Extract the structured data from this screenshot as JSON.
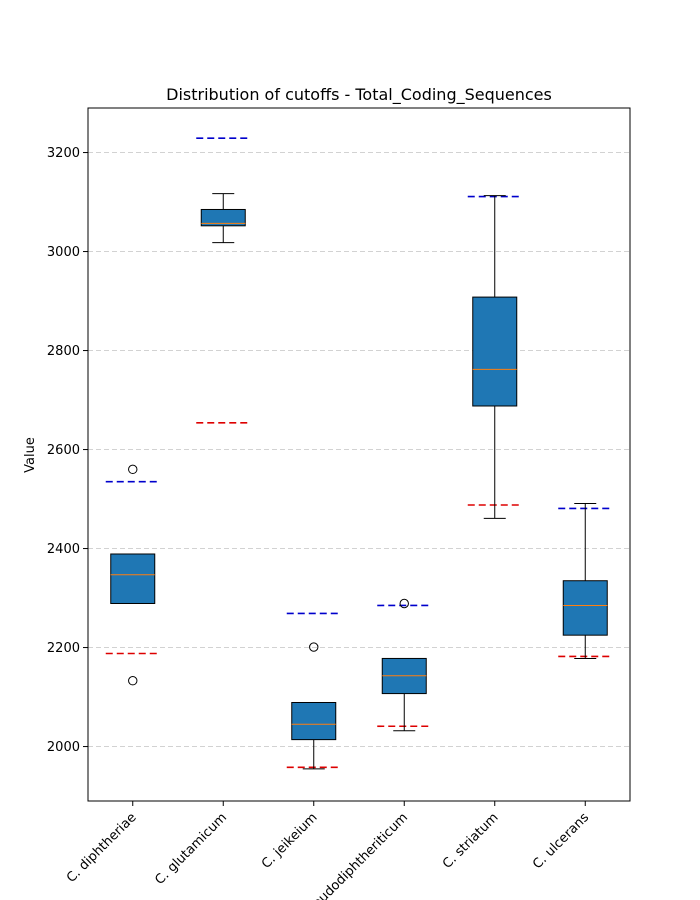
{
  "chart_data": {
    "type": "box",
    "title": "Distribution of cutoffs - Total_Coding_Sequences",
    "xlabel": "",
    "ylabel": "Value",
    "ylim": [
      1890,
      3290
    ],
    "yticks": [
      2000,
      2200,
      2400,
      2600,
      2800,
      3000,
      3200
    ],
    "grid": "horizontal dashed",
    "colors": {
      "box_fill": "#1f77b4",
      "median": "#ff7f0e",
      "upper_cutoff": "#0000cc",
      "lower_cutoff": "#dd0000",
      "grid": "#cccccc"
    },
    "categories": [
      "C. diphtheriae",
      "C. glutamicum",
      "C. jeikeium",
      "C. pseudodiphtheriticum",
      "C. striatum",
      "C. ulcerans"
    ],
    "boxes": [
      {
        "whisker_low": 2289,
        "q1": 2289,
        "median": 2347,
        "q3": 2389,
        "whisker_high": 2389,
        "outliers": [
          2560,
          2133
        ],
        "upper_cutoff": 2535,
        "lower_cutoff": 2188
      },
      {
        "whisker_low": 3018,
        "q1": 3052,
        "median": 3057,
        "q3": 3085,
        "whisker_high": 3117,
        "outliers": [],
        "upper_cutoff": 3229,
        "lower_cutoff": 2654
      },
      {
        "whisker_low": 1955,
        "q1": 2014,
        "median": 2045,
        "q3": 2089,
        "whisker_high": 2089,
        "outliers": [
          2201
        ],
        "upper_cutoff": 2269,
        "lower_cutoff": 1958
      },
      {
        "whisker_low": 2032,
        "q1": 2107,
        "median": 2143,
        "q3": 2178,
        "whisker_high": 2178,
        "outliers": [
          2289
        ],
        "upper_cutoff": 2285,
        "lower_cutoff": 2041
      },
      {
        "whisker_low": 2461,
        "q1": 2688,
        "median": 2762,
        "q3": 2908,
        "whisker_high": 3113,
        "outliers": [],
        "upper_cutoff": 3111,
        "lower_cutoff": 2488
      },
      {
        "whisker_low": 2178,
        "q1": 2225,
        "median": 2285,
        "q3": 2335,
        "whisker_high": 2491,
        "outliers": [],
        "upper_cutoff": 2481,
        "lower_cutoff": 2182
      }
    ]
  }
}
